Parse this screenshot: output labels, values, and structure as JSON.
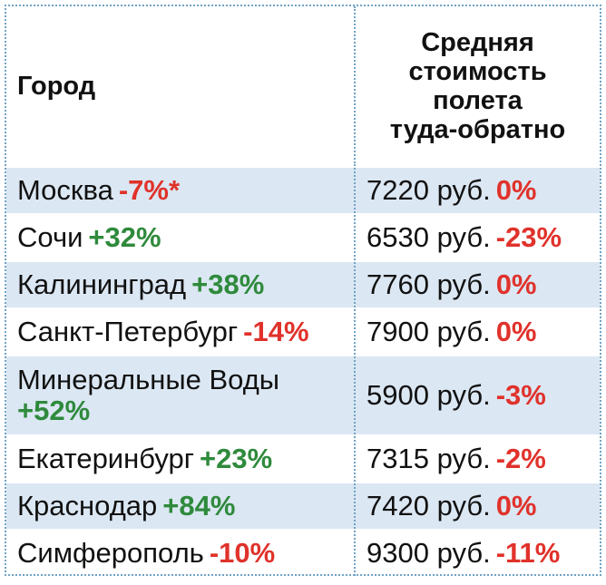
{
  "headers": {
    "city": "Город",
    "cost_lines": [
      "Средняя",
      "стоимость",
      "полета",
      "туда-обратно"
    ]
  },
  "rows": [
    {
      "city": "Москва",
      "city_change": "-7%*",
      "city_change_sign": "neg",
      "price": "7220 руб.",
      "price_change": "0%",
      "price_change_sign": "neg"
    },
    {
      "city": "Сочи",
      "city_change": "+32%",
      "city_change_sign": "pos",
      "price": "6530 руб.",
      "price_change": "-23%",
      "price_change_sign": "neg"
    },
    {
      "city": "Калининград",
      "city_change": "+38%",
      "city_change_sign": "pos",
      "price": "7760 руб.",
      "price_change": "0%",
      "price_change_sign": "neg"
    },
    {
      "city": "Санкт-Петербург",
      "city_change": "-14%",
      "city_change_sign": "neg",
      "price": "7900 руб.",
      "price_change": "0%",
      "price_change_sign": "neg"
    },
    {
      "city": "Минеральные Воды",
      "city_change": "+52%",
      "city_change_sign": "pos",
      "price": "5900 руб.",
      "price_change": "-3%",
      "price_change_sign": "neg"
    },
    {
      "city": "Екатеринбург",
      "city_change": "+23%",
      "city_change_sign": "pos",
      "price": "7315 руб.",
      "price_change": "-2%",
      "price_change_sign": "neg"
    },
    {
      "city": "Краснодар",
      "city_change": "+84%",
      "city_change_sign": "pos",
      "price": "7420 руб.",
      "price_change": "0%",
      "price_change_sign": "neg"
    },
    {
      "city": "Симферополь",
      "city_change": "-10%",
      "city_change_sign": "neg",
      "price": "9300 руб.",
      "price_change": "-11%",
      "price_change_sign": "neg"
    }
  ],
  "colors": {
    "shade": "#dbe7f3",
    "negative": "#e0322b",
    "positive": "#2f8a3c",
    "border": "#6fa3c7"
  }
}
